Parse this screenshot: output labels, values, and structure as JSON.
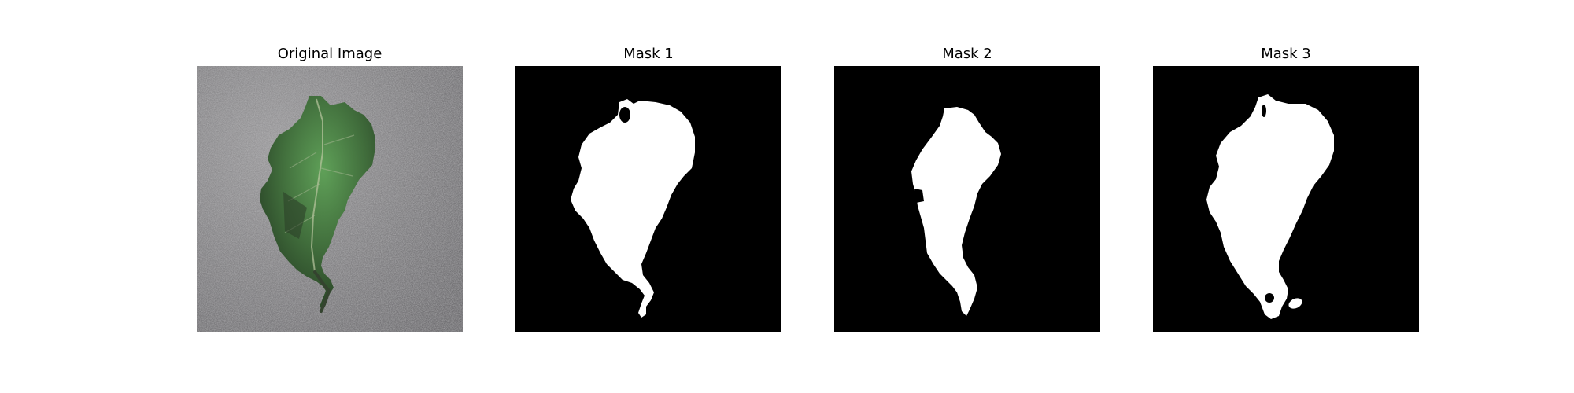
{
  "figure": {
    "panels": [
      {
        "title": "Original Image",
        "image": "photo-of-green-leaf-on-gray-surface"
      },
      {
        "title": "Mask 1",
        "image": "binary-mask"
      },
      {
        "title": "Mask 2",
        "image": "binary-mask"
      },
      {
        "title": "Mask 3",
        "image": "binary-mask"
      }
    ]
  },
  "colors": {
    "mask_background": "#000000",
    "mask_foreground": "#ffffff",
    "surface_gray": "#8a8a8c",
    "leaf_green": "#4f8a4a"
  }
}
